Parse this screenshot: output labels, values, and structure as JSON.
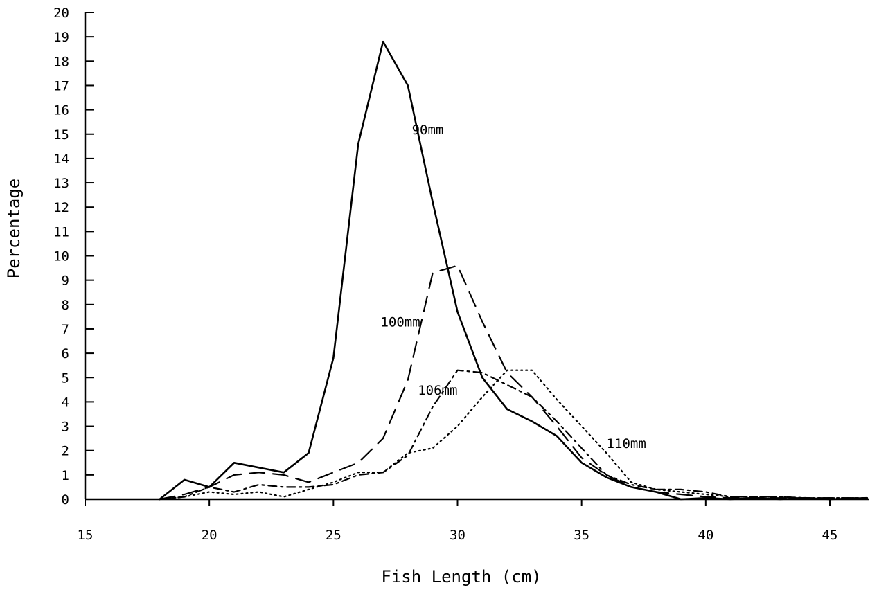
{
  "chart_data": {
    "type": "line",
    "title": "",
    "xlabel": "Fish Length (cm)",
    "ylabel": "Percentage",
    "xlim": [
      15,
      46.5
    ],
    "ylim": [
      0,
      20
    ],
    "xticks": [
      15,
      20,
      25,
      30,
      35,
      40,
      45
    ],
    "yticks": [
      0,
      1,
      2,
      3,
      4,
      5,
      6,
      7,
      8,
      9,
      10,
      11,
      12,
      13,
      14,
      15,
      16,
      17,
      18,
      19,
      20
    ],
    "grid": false,
    "legend": "none",
    "series": [
      {
        "name": "90mm",
        "style": "solid",
        "x": [
          18,
          19,
          20,
          21,
          22,
          23,
          24,
          25,
          26,
          27,
          28,
          29,
          30,
          31,
          32,
          33,
          34,
          35,
          36,
          37,
          38,
          39,
          40,
          41,
          42,
          43,
          44,
          45,
          46.5
        ],
        "y": [
          0,
          0.8,
          0.5,
          1.5,
          1.3,
          1.1,
          1.9,
          5.8,
          14.6,
          18.8,
          17.0,
          12.2,
          7.7,
          5.0,
          3.7,
          3.2,
          2.6,
          1.5,
          0.9,
          0.5,
          0.3,
          0.0,
          0.05,
          0.0,
          0.05,
          0.0,
          0.05,
          0.0,
          0.05
        ]
      },
      {
        "name": "100mm",
        "style": "dash",
        "x": [
          18,
          19,
          20,
          21,
          22,
          23,
          24,
          25,
          26,
          27,
          28,
          29,
          30,
          31,
          32,
          33,
          34,
          35,
          36,
          37,
          38,
          39,
          40,
          41,
          42,
          43,
          44,
          45,
          46.5
        ],
        "y": [
          0,
          0.2,
          0.5,
          1.0,
          1.1,
          1.0,
          0.7,
          1.1,
          1.5,
          2.5,
          4.9,
          9.3,
          9.6,
          7.3,
          5.2,
          4.2,
          3.0,
          1.7,
          1.0,
          0.5,
          0.3,
          0.2,
          0.1,
          0.05,
          0.05,
          0.05,
          0.05,
          0.05,
          0.05
        ]
      },
      {
        "name": "106mm",
        "style": "dash-dot",
        "x": [
          18,
          19,
          20,
          21,
          22,
          23,
          24,
          25,
          26,
          27,
          28,
          29,
          30,
          31,
          32,
          33,
          34,
          35,
          36,
          37,
          38,
          39,
          40,
          41,
          42,
          43,
          44,
          45,
          46.5
        ],
        "y": [
          0,
          0.1,
          0.5,
          0.3,
          0.6,
          0.5,
          0.5,
          0.6,
          1.0,
          1.1,
          1.8,
          3.8,
          5.3,
          5.2,
          4.7,
          4.2,
          3.2,
          2.1,
          1.0,
          0.6,
          0.4,
          0.4,
          0.3,
          0.1,
          0.1,
          0.1,
          0.05,
          0.05,
          0.05
        ]
      },
      {
        "name": "110mm",
        "style": "dot",
        "x": [
          18,
          19,
          20,
          21,
          22,
          23,
          24,
          25,
          26,
          27,
          28,
          29,
          30,
          31,
          32,
          33,
          34,
          35,
          36,
          37,
          38,
          39,
          40,
          41,
          42,
          43,
          44,
          45,
          46.5
        ],
        "y": [
          0,
          0.1,
          0.3,
          0.2,
          0.3,
          0.1,
          0.4,
          0.7,
          1.1,
          1.1,
          1.9,
          2.1,
          3.0,
          4.2,
          5.3,
          5.3,
          4.1,
          3.0,
          1.9,
          0.7,
          0.4,
          0.3,
          0.2,
          0.1,
          0.1,
          0.1,
          0.05,
          0.05,
          0.05
        ]
      }
    ],
    "annotations": [
      {
        "text": "90mm",
        "x": 28.8,
        "y": 15.0
      },
      {
        "text": "100mm",
        "x": 27.7,
        "y": 7.1
      },
      {
        "text": "106mm",
        "x": 29.2,
        "y": 4.3
      },
      {
        "text": "110mm",
        "x": 36.8,
        "y": 2.1
      }
    ]
  }
}
